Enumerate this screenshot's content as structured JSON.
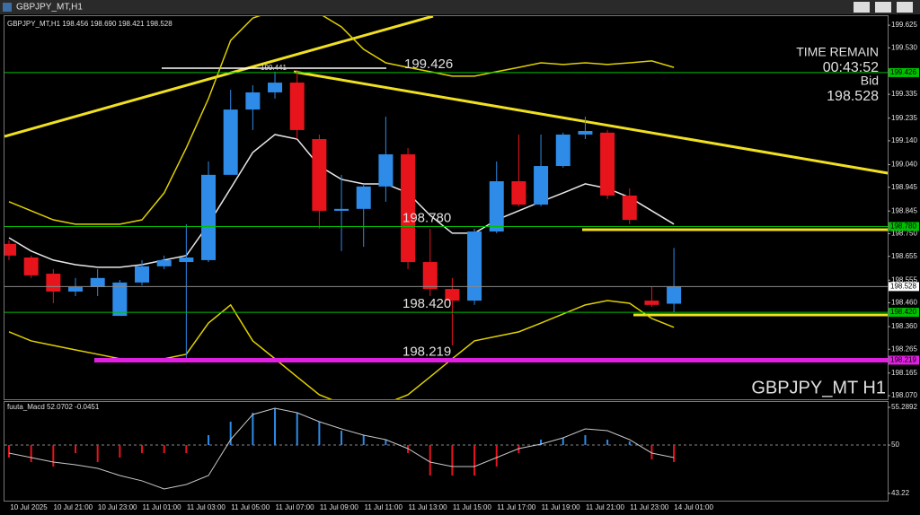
{
  "window_title": "GBPJPY_MT,H1",
  "chart_data": [
    {
      "type": "candlestick",
      "header": "GBPJPY_MT,H1 198.456 198.690 198.421 198.528",
      "symbol_label": "GBPJPY_MT H1",
      "categories": [
        "10 Jul 2025",
        null,
        "10 Jul 21:00",
        null,
        "10 Jul 23:00",
        null,
        "11 Jul 01:00",
        null,
        "11 Jul 03:00",
        null,
        "11 Jul 05:00",
        null,
        "11 Jul 07:00",
        null,
        "11 Jul 09:00",
        null,
        "11 Jul 11:00",
        null,
        "11 Jul 13:00",
        null,
        "11 Jul 15:00",
        null,
        "11 Jul 17:00",
        null,
        "11 Jul 19:00",
        null,
        "11 Jul 21:00",
        null,
        "11 Jul 23:00",
        null,
        "14 Jul 01:00"
      ],
      "open": [
        198.707,
        198.65,
        198.582,
        198.507,
        198.526,
        198.405,
        198.545,
        198.613,
        198.631,
        198.639,
        198.997,
        199.271,
        199.343,
        199.384,
        199.147,
        198.846,
        198.854,
        198.948,
        199.083,
        198.631,
        198.518,
        198.469,
        198.759,
        198.97,
        198.872,
        199.034,
        199.166,
        199.174,
        198.91,
        198.469,
        198.456
      ],
      "high": [
        198.722,
        198.658,
        198.601,
        198.564,
        198.601,
        198.556,
        198.639,
        198.658,
        198.79,
        199.053,
        199.354,
        199.373,
        199.43,
        199.437,
        199.166,
        198.997,
        198.959,
        199.241,
        199.11,
        198.771,
        198.564,
        198.771,
        199.053,
        199.166,
        199.166,
        199.174,
        199.241,
        199.185,
        198.94,
        198.526,
        198.69
      ],
      "low": [
        198.639,
        198.564,
        198.458,
        198.488,
        198.488,
        198.405,
        198.533,
        198.601,
        198.225,
        198.631,
        198.997,
        199.185,
        199.317,
        199.147,
        198.771,
        198.677,
        198.695,
        198.884,
        198.601,
        198.488,
        198.281,
        198.451,
        198.752,
        198.865,
        198.865,
        199.027,
        199.147,
        198.895,
        198.79,
        198.443,
        198.421
      ],
      "close": [
        198.658,
        198.575,
        198.507,
        198.526,
        198.564,
        198.545,
        198.613,
        198.639,
        198.65,
        198.997,
        199.271,
        199.343,
        199.384,
        199.185,
        198.846,
        198.854,
        198.948,
        199.083,
        198.631,
        198.518,
        198.469,
        198.759,
        198.97,
        198.872,
        199.034,
        199.166,
        199.181,
        198.91,
        198.808,
        198.451,
        198.528
      ],
      "up_color": "#2e8be8",
      "down_color": "#e8141c",
      "series": [
        {
          "color": "#e8e8e8",
          "values": [
            198.733,
            198.677,
            198.639,
            198.62,
            198.609,
            198.609,
            198.62,
            198.639,
            198.658,
            198.79,
            198.94,
            199.091,
            199.166,
            199.147,
            199.034,
            198.978,
            198.959,
            198.959,
            198.921,
            198.827,
            198.752,
            198.752,
            198.808,
            198.846,
            198.884,
            198.921,
            198.959,
            198.94,
            198.902,
            198.846,
            198.79
          ]
        },
        {
          "color": "#e0d000",
          "values": [
            198.884,
            198.846,
            198.808,
            198.79,
            198.79,
            198.79,
            198.808,
            198.921,
            199.11,
            199.317,
            199.561,
            199.655,
            199.686,
            199.693,
            199.674,
            199.618,
            199.524,
            199.467,
            199.448,
            199.43,
            199.411,
            199.411,
            199.43,
            199.448,
            199.467,
            199.46,
            199.467,
            199.46,
            199.467,
            199.475,
            199.448
          ]
        },
        {
          "color": "#e0d000",
          "values": [
            198.338,
            198.3,
            198.281,
            198.262,
            198.244,
            198.225,
            198.225,
            198.225,
            198.244,
            198.375,
            198.451,
            198.3,
            198.225,
            198.149,
            198.074,
            198.037,
            198.037,
            198.037,
            198.074,
            198.149,
            198.225,
            198.3,
            198.319,
            198.338,
            198.375,
            198.413,
            198.451,
            198.469,
            198.458,
            198.394,
            198.357
          ]
        }
      ],
      "levels": [
        {
          "value": 199.426,
          "color": "#00c000"
        },
        {
          "value": 198.78,
          "label": "198.780",
          "color": "#00c000"
        },
        {
          "value": 198.42,
          "label": "198.420",
          "color": "#00c000"
        },
        {
          "value": 198.219,
          "color": "#e020e0"
        }
      ],
      "annotation": 199.441,
      "time_remain_label": "TIME REMAIN",
      "time_remain": "00:43:52",
      "bid_label": "Bid",
      "bid": 198.528,
      "ylim": [
        198.055,
        199.663
      ],
      "yticks": [
        199.625,
        {
          "value": 199.53,
          "label": "199.530"
        },
        199.335,
        199.235,
        {
          "value": 199.14,
          "label": "199.140"
        },
        {
          "value": 199.04,
          "label": "199.040"
        },
        198.945,
        198.845,
        {
          "value": 198.75,
          "label": "198.750"
        },
        198.655,
        198.555,
        {
          "value": 198.46,
          "label": "198.460"
        },
        {
          "value": 198.36,
          "label": "198.360"
        },
        198.265,
        198.165,
        {
          "value": 198.07,
          "label": "198.070"
        }
      ]
    },
    {
      "type": "macd",
      "title": "fuuta_Macd 52.0702 -0.0451",
      "up_color": "#2e8be8",
      "down_color": "#e8141c",
      "histogram": [
        48.24,
        47.61,
        46.98,
        48.87,
        47.61,
        48.24,
        48.87,
        48.87,
        48.87,
        51.39,
        53.28,
        54.54,
        55.17,
        54.54,
        53.28,
        52.02,
        51.39,
        50.76,
        48.87,
        45.72,
        45.72,
        45.72,
        46.98,
        48.87,
        50.76,
        51.01,
        51.39,
        50.76,
        50.51,
        47.99,
        47.61
      ],
      "series": [
        {
          "color": "#c8c8c8",
          "values": [
            48.87,
            48.24,
            47.61,
            47.23,
            46.73,
            45.72,
            44.97,
            43.83,
            44.46,
            45.72,
            50.76,
            54.29,
            55.17,
            54.54,
            53.28,
            52.27,
            51.39,
            50.76,
            49.5,
            47.61,
            46.98,
            46.98,
            48.24,
            49.5,
            50.13,
            51.01,
            52.27,
            52.02,
            50.76,
            48.87,
            48.24
          ]
        }
      ],
      "ylim": [
        42.19,
        56.05
      ],
      "yticks": [
        55.2892,
        50,
        43.22
      ]
    }
  ]
}
